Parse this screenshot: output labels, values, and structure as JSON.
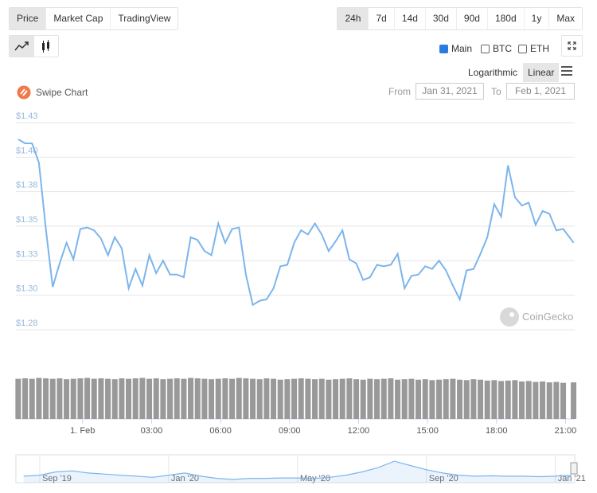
{
  "ui": {
    "tabs": [
      "Price",
      "Market Cap",
      "TradingView"
    ],
    "ranges": [
      "24h",
      "7d",
      "14d",
      "30d",
      "90d",
      "180d",
      "1y",
      "Max"
    ],
    "toggles": [
      {
        "label": "Main",
        "checked": true
      },
      {
        "label": "BTC",
        "checked": false
      },
      {
        "label": "ETH",
        "checked": false
      }
    ],
    "scales": [
      "Logarithmic",
      "Linear"
    ],
    "swipe": "Swipe Chart",
    "from_label": "From",
    "from_date": "Jan 31, 2021",
    "to_label": "To",
    "to_date": "Feb 1, 2021",
    "watermark": "CoinGecko"
  },
  "chart_data": [
    {
      "type": "line",
      "x": [
        -2.8,
        -2.5,
        -2.2,
        -1.9,
        -1.6,
        -1.3,
        -1.0,
        -0.7,
        -0.4,
        -0.1,
        0.2,
        0.5,
        0.8,
        1.1,
        1.4,
        1.7,
        2.0,
        2.3,
        2.6,
        2.9,
        3.2,
        3.5,
        3.8,
        4.1,
        4.4,
        4.7,
        5.0,
        5.3,
        5.6,
        5.9,
        6.2,
        6.5,
        6.8,
        7.1,
        7.4,
        7.7,
        8.0,
        8.3,
        8.6,
        8.9,
        9.2,
        9.5,
        9.8,
        10.1,
        10.4,
        10.7,
        11.0,
        11.3,
        11.6,
        11.9,
        12.2,
        12.5,
        12.8,
        13.1,
        13.4,
        13.7,
        14.0,
        14.3,
        14.6,
        14.9,
        15.2,
        15.5,
        15.8,
        16.1,
        16.4,
        16.7,
        17.0,
        17.3,
        17.6,
        17.9,
        18.2,
        18.5,
        18.8,
        19.1,
        19.4,
        19.7,
        20.0,
        20.3,
        20.6,
        20.9,
        21.35
      ],
      "series": [
        {
          "color": "#7cb5ec",
          "values": [
            1.413,
            1.41,
            1.41,
            1.396,
            1.348,
            1.306,
            1.323,
            1.338,
            1.326,
            1.348,
            1.349,
            1.347,
            1.341,
            1.329,
            1.342,
            1.334,
            1.305,
            1.319,
            1.307,
            1.329,
            1.316,
            1.325,
            1.315,
            1.315,
            1.313,
            1.342,
            1.34,
            1.332,
            1.329,
            1.352,
            1.338,
            1.348,
            1.349,
            1.315,
            1.293,
            1.296,
            1.297,
            1.305,
            1.321,
            1.322,
            1.338,
            1.347,
            1.344,
            1.352,
            1.344,
            1.332,
            1.339,
            1.347,
            1.326,
            1.323,
            1.311,
            1.313,
            1.322,
            1.321,
            1.322,
            1.33,
            1.305,
            1.314,
            1.315,
            1.321,
            1.319,
            1.325,
            1.318,
            1.307,
            1.297,
            1.318,
            1.319,
            1.33,
            1.342,
            1.366,
            1.357,
            1.394,
            1.371,
            1.365,
            1.367,
            1.351,
            1.361,
            1.359,
            1.347,
            1.348,
            1.338
          ]
        },
        {
          "color": "#999999",
          "axis": "y2",
          "values": [
            90,
            91,
            90,
            92,
            91,
            90,
            91,
            89,
            90,
            91,
            92,
            90,
            91,
            90,
            89,
            91,
            90,
            91,
            92,
            90,
            91,
            89,
            90,
            91,
            90,
            92,
            91,
            90,
            89,
            90,
            91,
            90,
            92,
            91,
            90,
            89,
            91,
            90,
            88,
            89,
            90,
            91,
            90,
            89,
            90,
            88,
            89,
            90,
            91,
            89,
            88,
            90,
            89,
            90,
            91,
            88,
            89,
            90,
            88,
            89,
            87,
            88,
            89,
            90,
            88,
            87,
            89,
            88,
            86,
            87,
            85,
            86,
            87,
            84,
            85,
            83,
            84,
            82,
            83,
            81,
            82
          ]
        }
      ],
      "xlim": [
        -2.9,
        21.4
      ],
      "xticks": [
        {
          "value": 0,
          "label": "1. Feb"
        },
        {
          "value": 3,
          "label": "03:00"
        },
        {
          "value": 6,
          "label": "06:00"
        },
        {
          "value": 9,
          "label": "09:00"
        },
        {
          "value": 12,
          "label": "12:00"
        },
        {
          "value": 15,
          "label": "15:00"
        },
        {
          "value": 18,
          "label": "18:00"
        },
        {
          "value": 21,
          "label": "21:00"
        }
      ],
      "ylim": [
        1.275,
        1.425
      ],
      "yticks": [
        {
          "value": 1.425,
          "label": "$1.43"
        },
        {
          "value": 1.4,
          "label": "$1.40"
        },
        {
          "value": 1.375,
          "label": "$1.38"
        },
        {
          "value": 1.35,
          "label": "$1.35"
        },
        {
          "value": 1.325,
          "label": "$1.33"
        },
        {
          "value": 1.3,
          "label": "$1.30"
        },
        {
          "value": 1.275,
          "label": "$1.28"
        }
      ],
      "y2lim": [
        0,
        100
      ],
      "grid": true
    },
    {
      "type": "area",
      "color": "#7cb5ec",
      "x": [
        -0.5,
        0,
        0.5,
        1,
        1.5,
        2,
        2.5,
        3,
        3.5,
        4,
        4.5,
        5,
        5.5,
        6,
        6.5,
        7,
        7.5,
        8,
        8.5,
        9,
        9.5,
        10,
        10.5,
        11,
        11.5,
        12,
        12.5,
        13,
        13.5,
        14,
        14.5,
        15,
        15.5,
        16,
        16.5
      ],
      "values": [
        0.3,
        0.35,
        0.5,
        0.55,
        0.45,
        0.4,
        0.35,
        0.3,
        0.25,
        0.35,
        0.45,
        0.3,
        0.2,
        0.15,
        0.2,
        0.2,
        0.22,
        0.22,
        0.2,
        0.25,
        0.35,
        0.5,
        0.7,
        1.0,
        0.8,
        0.6,
        0.45,
        0.35,
        0.3,
        0.32,
        0.3,
        0.3,
        0.28,
        0.3,
        0.35
      ],
      "xlim": [
        -0.74,
        16.6
      ],
      "xticks": [
        {
          "value": 0,
          "label": "Sep '19"
        },
        {
          "value": 4,
          "label": "Jan '20"
        },
        {
          "value": 8,
          "label": "May '20"
        },
        {
          "value": 12,
          "label": "Sep '20"
        },
        {
          "value": 16,
          "label": "Jan '21"
        }
      ],
      "ylim": [
        0,
        1.3
      ]
    }
  ]
}
